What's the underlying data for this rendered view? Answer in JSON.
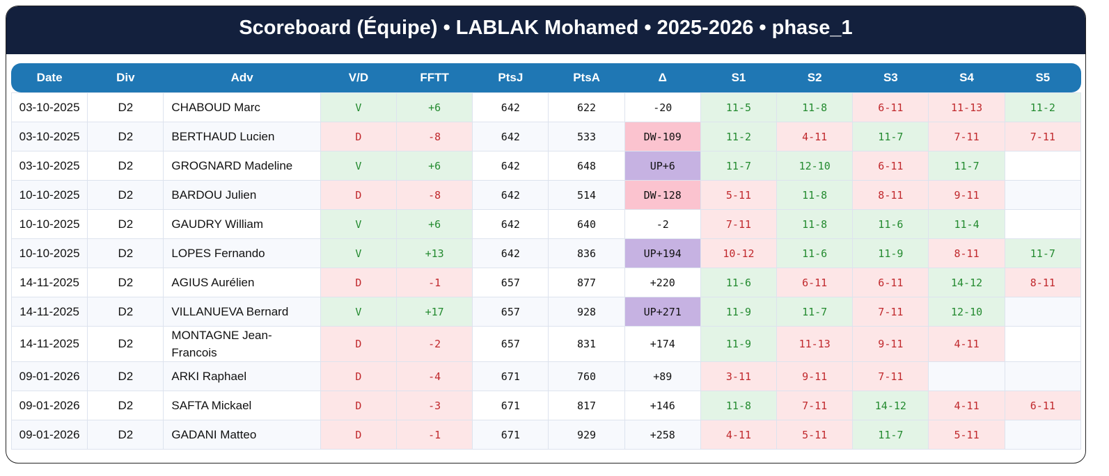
{
  "header": {
    "title": "Scoreboard (Équipe) • LABLAK Mohamed • 2025-2026 • phase_1"
  },
  "table": {
    "columns": [
      "Date",
      "Div",
      "Adv",
      "V/D",
      "FFTT",
      "PtsJ",
      "PtsA",
      "Δ",
      "S1",
      "S2",
      "S3",
      "S4",
      "S5"
    ],
    "rows": [
      [
        "03-10-2025",
        "D2",
        "CHABOUD Marc",
        "V",
        "+6",
        642,
        622,
        "-20",
        "11-5",
        "11-8",
        "6-11",
        "11-13",
        "11-2"
      ],
      [
        "03-10-2025",
        "D2",
        "BERTHAUD Lucien",
        "D",
        "-8",
        642,
        533,
        "DW-109",
        "11-2",
        "4-11",
        "11-7",
        "7-11",
        "7-11"
      ],
      [
        "03-10-2025",
        "D2",
        "GROGNARD Madeline",
        "V",
        "+6",
        642,
        648,
        "UP+6",
        "11-7",
        "12-10",
        "6-11",
        "11-7",
        null
      ],
      [
        "10-10-2025",
        "D2",
        "BARDOU Julien",
        "D",
        "-8",
        642,
        514,
        "DW-128",
        "5-11",
        "11-8",
        "8-11",
        "9-11",
        null
      ],
      [
        "10-10-2025",
        "D2",
        "GAUDRY William",
        "V",
        "+6",
        642,
        640,
        "-2",
        "7-11",
        "11-8",
        "11-6",
        "11-4",
        null
      ],
      [
        "10-10-2025",
        "D2",
        "LOPES Fernando",
        "V",
        "+13",
        642,
        836,
        "UP+194",
        "10-12",
        "11-6",
        "11-9",
        "8-11",
        "11-7"
      ],
      [
        "14-11-2025",
        "D2",
        "AGIUS Aurélien",
        "D",
        "-1",
        657,
        877,
        "+220",
        "11-6",
        "6-11",
        "6-11",
        "14-12",
        "8-11"
      ],
      [
        "14-11-2025",
        "D2",
        "VILLANUEVA Bernard",
        "V",
        "+17",
        657,
        928,
        "UP+271",
        "11-9",
        "11-7",
        "7-11",
        "12-10",
        null
      ],
      [
        "14-11-2025",
        "D2",
        "MONTAGNE Jean-Francois",
        "D",
        "-2",
        657,
        831,
        "+174",
        "11-9",
        "11-13",
        "9-11",
        "4-11",
        null
      ],
      [
        "09-01-2026",
        "D2",
        "ARKI Raphael",
        "D",
        "-4",
        671,
        760,
        "+89",
        "3-11",
        "9-11",
        "7-11",
        null,
        null
      ],
      [
        "09-01-2026",
        "D2",
        "SAFTA Mickael",
        "D",
        "-3",
        671,
        817,
        "+146",
        "11-8",
        "7-11",
        "14-12",
        "4-11",
        "6-11"
      ],
      [
        "09-01-2026",
        "D2",
        "GADANI Matteo",
        "D",
        "-1",
        671,
        929,
        "+258",
        "4-11",
        "5-11",
        "11-7",
        "5-11",
        null
      ]
    ]
  }
}
